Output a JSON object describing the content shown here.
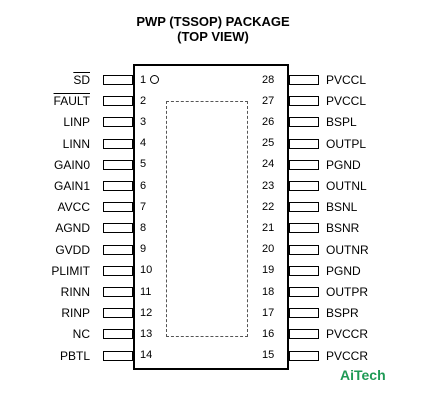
{
  "title_line1": "PWP (TSSOP) PACKAGE",
  "title_line2": "(TOP VIEW)",
  "left_pins": [
    {
      "num": "1",
      "label": "SD",
      "overline": true
    },
    {
      "num": "2",
      "label": "FAULT",
      "overline": true
    },
    {
      "num": "3",
      "label": "LINP"
    },
    {
      "num": "4",
      "label": "LINN"
    },
    {
      "num": "5",
      "label": "GAIN0"
    },
    {
      "num": "6",
      "label": "GAIN1"
    },
    {
      "num": "7",
      "label": "AVCC"
    },
    {
      "num": "8",
      "label": "AGND"
    },
    {
      "num": "9",
      "label": "GVDD"
    },
    {
      "num": "10",
      "label": "PLIMIT"
    },
    {
      "num": "11",
      "label": "RINN"
    },
    {
      "num": "12",
      "label": "RINP"
    },
    {
      "num": "13",
      "label": "NC"
    },
    {
      "num": "14",
      "label": "PBTL"
    }
  ],
  "right_pins": [
    {
      "num": "28",
      "label": "PVCCL"
    },
    {
      "num": "27",
      "label": "PVCCL"
    },
    {
      "num": "26",
      "label": "BSPL"
    },
    {
      "num": "25",
      "label": "OUTPL"
    },
    {
      "num": "24",
      "label": "PGND"
    },
    {
      "num": "23",
      "label": "OUTNL"
    },
    {
      "num": "22",
      "label": "BSNL"
    },
    {
      "num": "21",
      "label": "BSNR"
    },
    {
      "num": "20",
      "label": "OUTNR"
    },
    {
      "num": "19",
      "label": "PGND"
    },
    {
      "num": "18",
      "label": "OUTPR"
    },
    {
      "num": "17",
      "label": "BSPR"
    },
    {
      "num": "16",
      "label": "PVCCR"
    },
    {
      "num": "15",
      "label": "PVCCR"
    }
  ],
  "watermark": "AiTech",
  "brand_color": "#1e9a55"
}
